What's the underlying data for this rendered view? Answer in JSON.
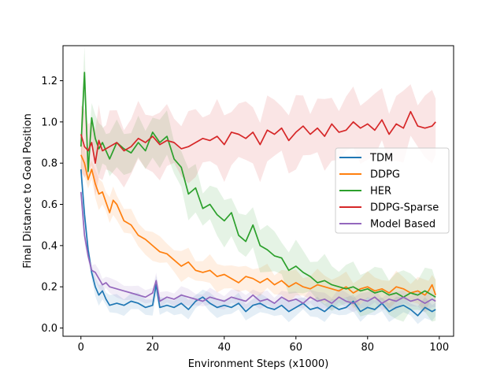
{
  "chart_data": {
    "type": "line",
    "title": "",
    "xlabel": "Environment Steps (x1000)",
    "ylabel": "Final Distance to Goal Position",
    "xlim": [
      -5,
      104
    ],
    "ylim": [
      -0.04,
      1.37
    ],
    "xticks": [
      0,
      20,
      40,
      60,
      80,
      100
    ],
    "yticks": [
      0.0,
      0.2,
      0.4,
      0.6,
      0.8,
      1.0,
      1.2
    ],
    "xtick_labels": [
      "0",
      "20",
      "40",
      "60",
      "80",
      "100"
    ],
    "ytick_labels": [
      "0.0",
      "0.2",
      "0.4",
      "0.6",
      "0.8",
      "1.0",
      "1.2"
    ],
    "legend_position": "center-right",
    "series": [
      {
        "name": "TDM",
        "color": "#1f77b4",
        "x": [
          0,
          1,
          2,
          3,
          4,
          5,
          6,
          7,
          8,
          10,
          12,
          14,
          16,
          18,
          20,
          21,
          22,
          24,
          26,
          28,
          30,
          32,
          34,
          36,
          38,
          40,
          42,
          44,
          46,
          48,
          50,
          52,
          54,
          56,
          58,
          60,
          62,
          64,
          66,
          68,
          70,
          72,
          74,
          76,
          78,
          80,
          82,
          84,
          86,
          88,
          90,
          92,
          94,
          96,
          98,
          99
        ],
        "y": [
          0.77,
          0.55,
          0.38,
          0.27,
          0.2,
          0.16,
          0.18,
          0.14,
          0.11,
          0.12,
          0.11,
          0.13,
          0.12,
          0.1,
          0.11,
          0.21,
          0.1,
          0.11,
          0.1,
          0.12,
          0.09,
          0.13,
          0.15,
          0.12,
          0.1,
          0.11,
          0.1,
          0.12,
          0.08,
          0.11,
          0.12,
          0.1,
          0.09,
          0.11,
          0.08,
          0.1,
          0.12,
          0.09,
          0.1,
          0.08,
          0.11,
          0.09,
          0.1,
          0.13,
          0.08,
          0.1,
          0.09,
          0.12,
          0.08,
          0.1,
          0.11,
          0.09,
          0.06,
          0.1,
          0.08,
          0.09
        ],
        "spread": 0.04
      },
      {
        "name": "DDPG",
        "color": "#ff7f0e",
        "x": [
          0,
          1,
          2,
          3,
          4,
          5,
          6,
          7,
          8,
          9,
          10,
          12,
          14,
          16,
          18,
          20,
          22,
          24,
          26,
          28,
          30,
          32,
          34,
          36,
          38,
          40,
          42,
          44,
          46,
          48,
          50,
          52,
          54,
          56,
          58,
          60,
          62,
          64,
          66,
          68,
          70,
          72,
          74,
          76,
          78,
          80,
          82,
          84,
          86,
          88,
          90,
          92,
          94,
          96,
          97,
          98,
          99
        ],
        "y": [
          0.84,
          0.8,
          0.72,
          0.77,
          0.7,
          0.65,
          0.66,
          0.61,
          0.56,
          0.62,
          0.6,
          0.52,
          0.5,
          0.45,
          0.43,
          0.4,
          0.37,
          0.36,
          0.33,
          0.3,
          0.32,
          0.28,
          0.27,
          0.28,
          0.25,
          0.26,
          0.24,
          0.22,
          0.25,
          0.24,
          0.22,
          0.24,
          0.21,
          0.23,
          0.2,
          0.22,
          0.2,
          0.19,
          0.21,
          0.2,
          0.19,
          0.18,
          0.2,
          0.17,
          0.19,
          0.2,
          0.18,
          0.19,
          0.17,
          0.2,
          0.19,
          0.17,
          0.18,
          0.16,
          0.18,
          0.21,
          0.16
        ],
        "spread": 0.06
      },
      {
        "name": "HER",
        "color": "#2ca02c",
        "x": [
          0,
          1,
          2,
          3,
          4,
          5,
          6,
          7,
          8,
          10,
          12,
          14,
          16,
          18,
          20,
          22,
          24,
          26,
          28,
          30,
          32,
          34,
          36,
          38,
          40,
          42,
          44,
          46,
          48,
          50,
          52,
          54,
          56,
          58,
          60,
          62,
          64,
          66,
          68,
          70,
          72,
          74,
          76,
          78,
          80,
          82,
          84,
          86,
          88,
          90,
          92,
          94,
          96,
          98,
          99
        ],
        "y": [
          0.88,
          1.24,
          0.76,
          1.02,
          0.92,
          0.87,
          0.9,
          0.86,
          0.82,
          0.9,
          0.87,
          0.85,
          0.9,
          0.86,
          0.95,
          0.9,
          0.93,
          0.82,
          0.78,
          0.65,
          0.68,
          0.58,
          0.6,
          0.55,
          0.52,
          0.56,
          0.45,
          0.42,
          0.5,
          0.4,
          0.38,
          0.35,
          0.34,
          0.28,
          0.3,
          0.27,
          0.25,
          0.22,
          0.23,
          0.21,
          0.2,
          0.19,
          0.2,
          0.18,
          0.19,
          0.17,
          0.18,
          0.16,
          0.17,
          0.15,
          0.17,
          0.16,
          0.18,
          0.16,
          0.15
        ],
        "spread": 0.1
      },
      {
        "name": "DDPG-Sparse",
        "color": "#d62728",
        "x": [
          0,
          1,
          2,
          3,
          4,
          5,
          6,
          7,
          8,
          10,
          12,
          14,
          16,
          18,
          20,
          22,
          24,
          26,
          28,
          30,
          32,
          34,
          36,
          38,
          40,
          42,
          44,
          46,
          48,
          50,
          52,
          54,
          56,
          58,
          60,
          62,
          64,
          66,
          68,
          70,
          72,
          74,
          76,
          78,
          80,
          82,
          84,
          86,
          88,
          90,
          92,
          94,
          96,
          98,
          99
        ],
        "y": [
          0.94,
          0.88,
          0.86,
          0.9,
          0.8,
          0.91,
          0.86,
          0.87,
          0.88,
          0.9,
          0.86,
          0.88,
          0.92,
          0.9,
          0.93,
          0.89,
          0.91,
          0.9,
          0.87,
          0.88,
          0.9,
          0.92,
          0.91,
          0.93,
          0.89,
          0.95,
          0.94,
          0.92,
          0.95,
          0.89,
          0.96,
          0.94,
          0.97,
          0.91,
          0.95,
          0.98,
          0.94,
          0.97,
          0.93,
          0.99,
          0.95,
          0.96,
          1.0,
          0.97,
          0.99,
          0.96,
          1.01,
          0.94,
          0.99,
          0.97,
          1.05,
          0.98,
          0.97,
          0.98,
          1.0
        ],
        "spread": 0.14
      },
      {
        "name": "Model Based",
        "color": "#9467bd",
        "x": [
          0,
          1,
          2,
          3,
          4,
          5,
          6,
          7,
          8,
          10,
          12,
          14,
          16,
          18,
          20,
          21,
          22,
          24,
          26,
          28,
          30,
          32,
          34,
          36,
          38,
          40,
          42,
          44,
          46,
          48,
          50,
          52,
          54,
          56,
          58,
          60,
          62,
          64,
          66,
          68,
          70,
          72,
          74,
          76,
          78,
          80,
          82,
          84,
          86,
          88,
          90,
          92,
          94,
          96,
          98,
          99
        ],
        "y": [
          0.66,
          0.45,
          0.35,
          0.28,
          0.27,
          0.24,
          0.21,
          0.22,
          0.2,
          0.19,
          0.18,
          0.17,
          0.16,
          0.15,
          0.17,
          0.23,
          0.13,
          0.15,
          0.14,
          0.16,
          0.15,
          0.14,
          0.13,
          0.15,
          0.14,
          0.13,
          0.15,
          0.14,
          0.13,
          0.16,
          0.13,
          0.14,
          0.12,
          0.15,
          0.13,
          0.14,
          0.12,
          0.15,
          0.13,
          0.14,
          0.12,
          0.15,
          0.13,
          0.12,
          0.14,
          0.13,
          0.15,
          0.12,
          0.14,
          0.13,
          0.15,
          0.13,
          0.14,
          0.12,
          0.14,
          0.13
        ],
        "spread": 0.035
      }
    ]
  }
}
